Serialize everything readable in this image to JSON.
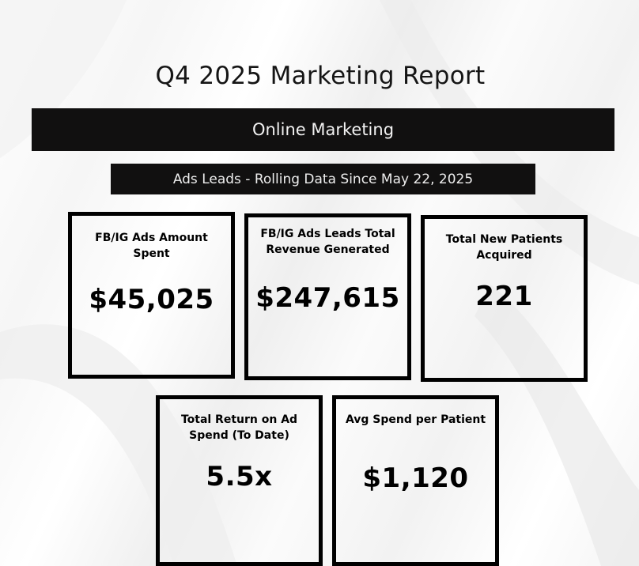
{
  "report": {
    "title": "Q4 2025 Marketing Report",
    "section": "Online Marketing",
    "subsection": "Ads Leads - Rolling Data Since May 22, 2025"
  },
  "metrics": [
    {
      "label": "FB/IG Ads Amount Spent",
      "value": "$45,025"
    },
    {
      "label": "FB/IG Ads Leads Total Revenue Generated",
      "value": "$247,615"
    },
    {
      "label": "Total New Patients Acquired",
      "value": "221"
    },
    {
      "label": "Total Return on Ad Spend (To Date)",
      "value": "5.5x"
    },
    {
      "label": "Avg Spend per Patient",
      "value": "$1,120"
    }
  ]
}
